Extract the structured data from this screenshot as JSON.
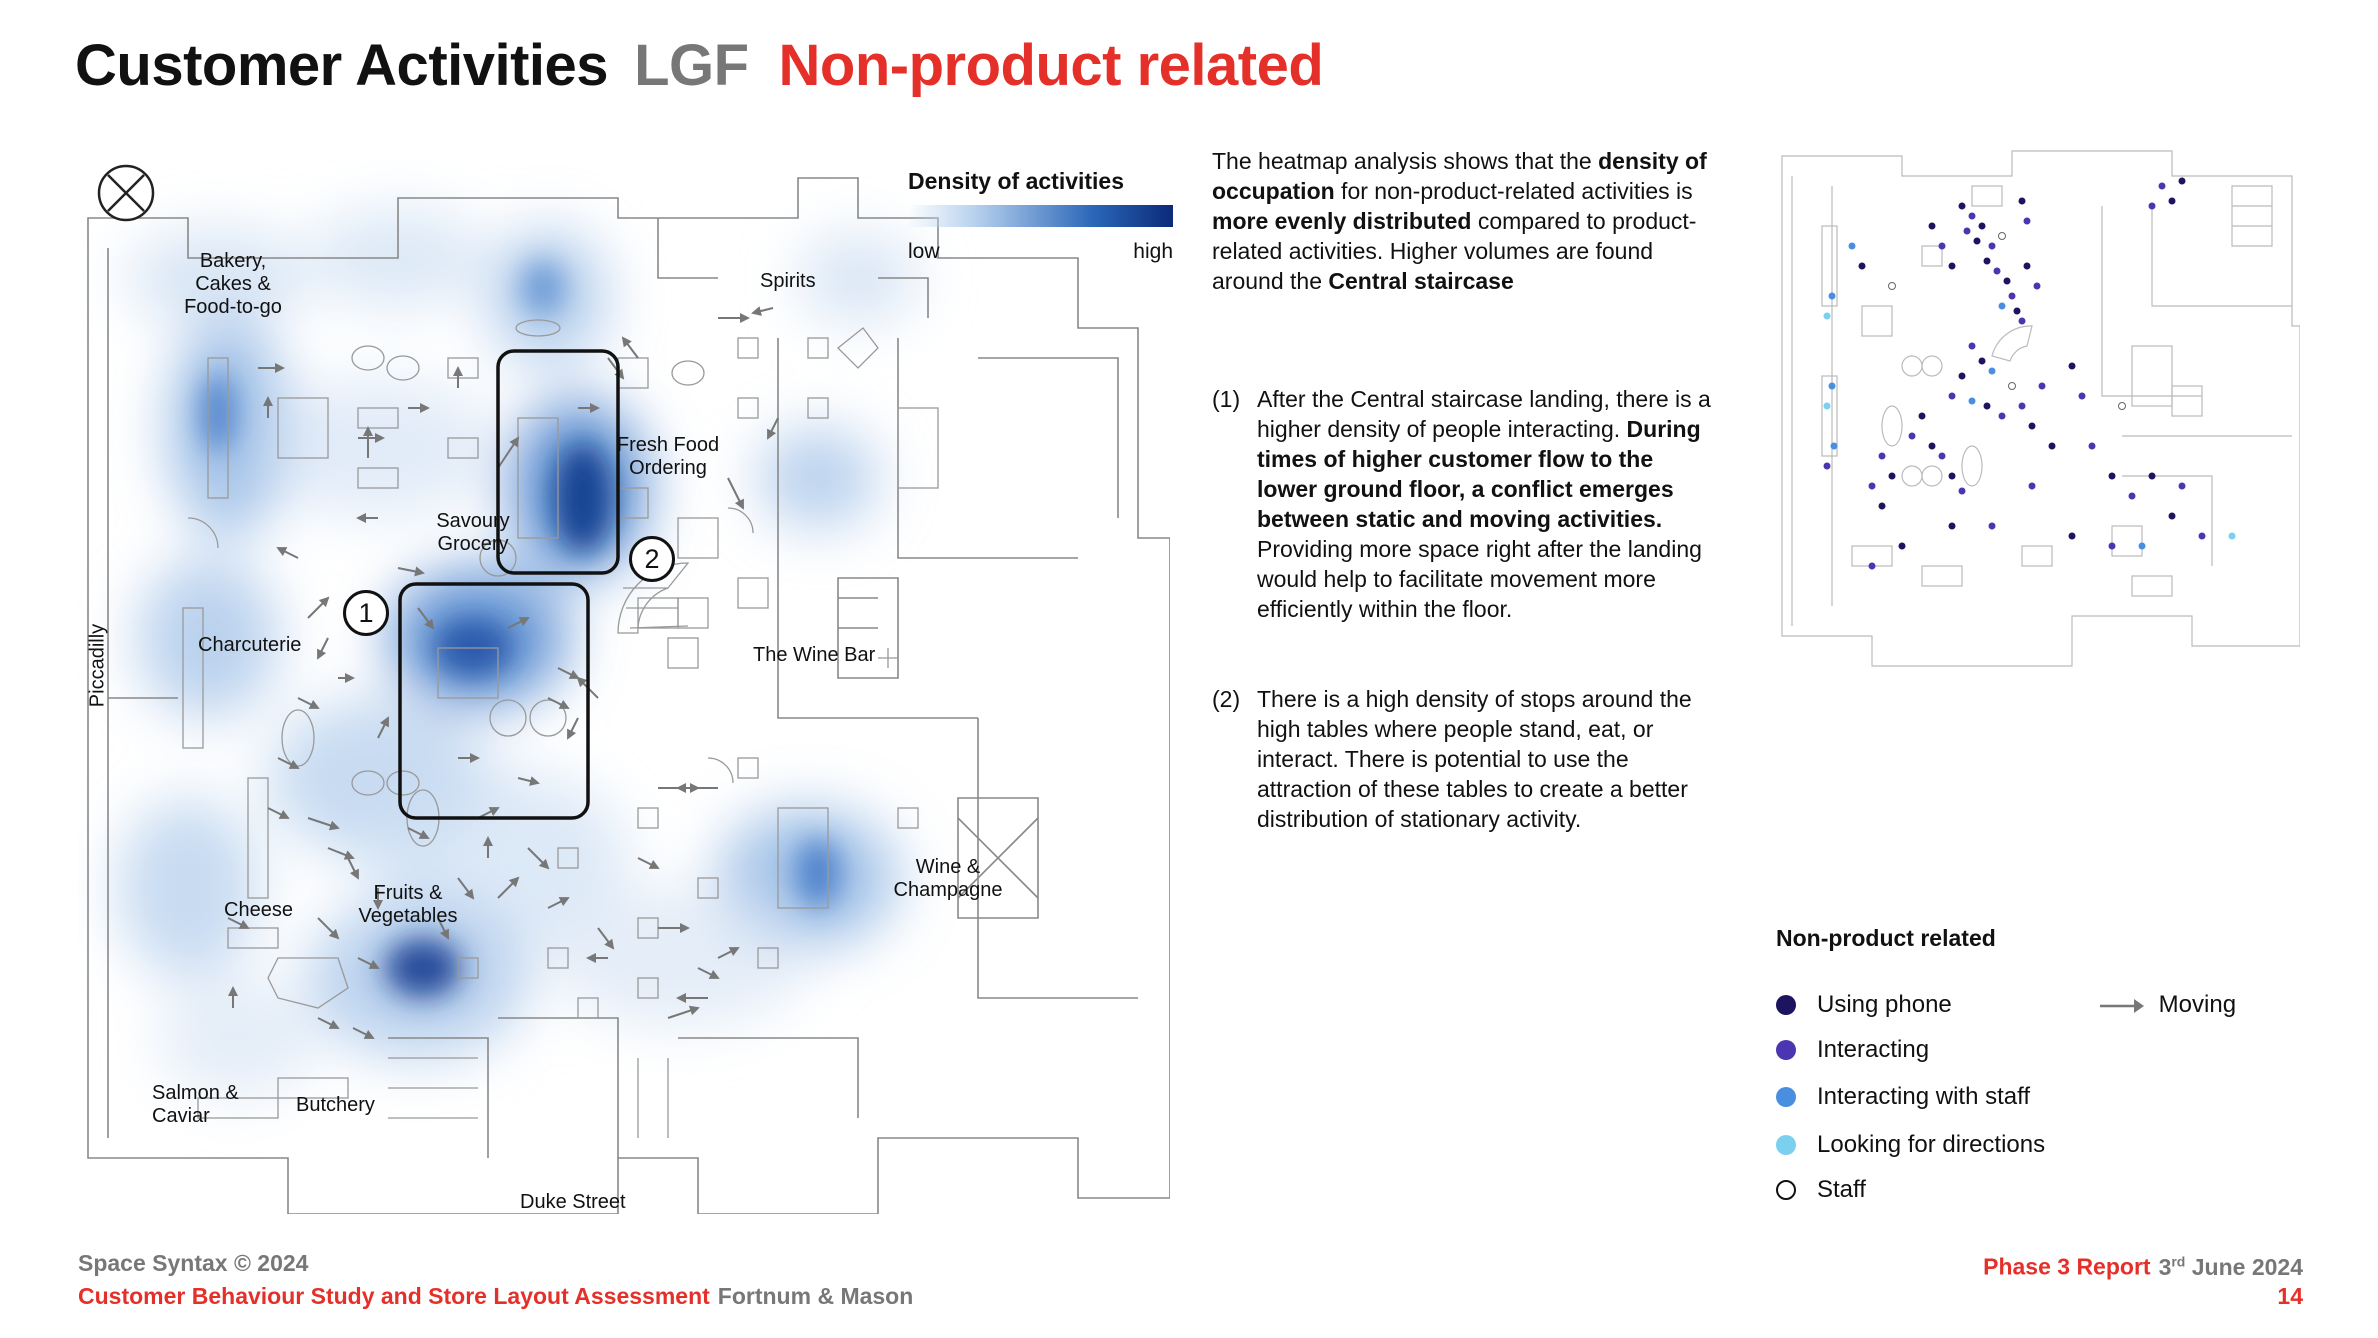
{
  "title": {
    "main": "Customer Activities",
    "level": "LGF",
    "subtitle": "Non-product related"
  },
  "plan": {
    "labels": {
      "bakery": "Bakery,",
      "cakes": "Cakes &",
      "food_to_go": "Food-to-go",
      "spirits": "Spirits",
      "fresh_food": "Fresh Food",
      "ordering": "Ordering",
      "savoury": "Savoury",
      "grocery": "Grocery",
      "charcuterie": "Charcuterie",
      "piccadilly": "Piccadilly",
      "wine_bar": "The Wine Bar",
      "wine": "Wine &",
      "champagne": "Champagne",
      "cheese": "Cheese",
      "fruits": "Fruits &",
      "vegetables": "Vegetables",
      "salmon": "Salmon &",
      "caviar": "Caviar",
      "butchery": "Butchery",
      "duke_street": "Duke Street"
    },
    "markers": {
      "one": "1",
      "two": "2"
    }
  },
  "density_legend": {
    "title": "Density of activities",
    "low": "low",
    "high": "high"
  },
  "intro": {
    "s1": "The heatmap analysis shows that the ",
    "b1": "density of occupation",
    "s2": " for non-product-related activities is ",
    "b2": "more evenly distributed",
    "s3": " compared to product-related activities. Higher volumes are found around the ",
    "b3": "Central staircase"
  },
  "points": {
    "p1": {
      "num": "(1)",
      "s1": "After the Central staircase landing, there is a higher density of people interacting. ",
      "b1": "During times of higher customer flow to the lower ground floor, a conflict emerges between static and moving activities.",
      "s2": " Providing more space right after the landing would help to facilitate movement more efficiently within the floor."
    },
    "p2": {
      "num": "(2)",
      "s1": "There is a high density of stops around the high tables where people stand, eat, or interact. There is potential to use the attraction of these tables to create a better distribution of stationary activity."
    }
  },
  "category_legend": {
    "title": "Non-product related",
    "items": [
      {
        "label": "Using phone",
        "color": "#1d1460"
      },
      {
        "label": "Interacting",
        "color": "#4b35b0"
      },
      {
        "label": "Interacting with staff",
        "color": "#4a8ee0"
      },
      {
        "label": "Looking for directions",
        "color": "#7cd0ef"
      },
      {
        "label": "Staff",
        "color": "#ffffff"
      }
    ],
    "moving": "Moving"
  },
  "footer": {
    "copyright": "Space Syntax © 2024",
    "study": "Customer Behaviour Study and Store Layout Assessment",
    "client": "Fortnum & Mason",
    "report": "Phase 3 Report",
    "day": "3",
    "day_suffix": "rd",
    "month_year": " June 2024",
    "page": "14"
  }
}
